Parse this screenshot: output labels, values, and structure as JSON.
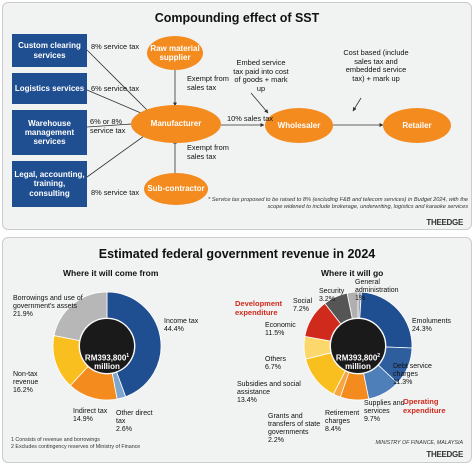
{
  "sst": {
    "title": "Compounding effect of SST",
    "boxes": {
      "custom": "Custom clearing services",
      "logistics": "Logistics services",
      "warehouse": "Warehouse management services",
      "legal": "Legal, accounting, training, consulting"
    },
    "ovals": {
      "raw": "Raw material supplier",
      "manufacturer": "Manufacturer",
      "subcontractor": "Sub-contractor",
      "wholesaler": "Wholesaler",
      "retailer": "Retailer"
    },
    "labels": {
      "custom_tax": "8% service tax",
      "logistics_tax": "6% service tax",
      "warehouse_tax": "6% or 8% service tax",
      "legal_tax": "8% service tax",
      "exempt_top": "Exempt from sales tax",
      "exempt_bottom": "Exempt from sales tax",
      "sales_tax": "10% sales tax",
      "embed": "Embed service tax paid into cost of goods + mark up",
      "cost_based": "Cost based (include sales tax and embedded service tax) + mark up"
    },
    "note": "* Service tax proposed to be raised to 8% (excluding F&B and telecom services) in Budget 2024, with the scope widened to include brokerage, underwriting, logistics and karaoke services",
    "logo": "THEEDGE"
  },
  "revenue": {
    "title": "Estimated federal government revenue in 2024",
    "left_sub": "Where it will come from",
    "right_sub": "Where it will go",
    "center_left": "RM393,800",
    "center_left_sup": "1",
    "center_right": "RM393,800",
    "center_right_sup": "2",
    "center_unit": "million",
    "dev_label": "Development expenditure",
    "op_label": "Operating expenditure",
    "footnotes": [
      "1 Consists of revenue and borrowings",
      "2 Excludes contingency reserves of Ministry of Finance"
    ],
    "source": "MINISTRY OF FINANCE, MALAYSIA",
    "logo": "THEEDGE"
  },
  "chart_data": [
    {
      "type": "pie",
      "title": "Where it will come from",
      "categories": [
        "Income tax",
        "Other direct tax",
        "Indirect tax",
        "Non-tax revenue",
        "Borrowings and use of government's assets"
      ],
      "values": [
        44.4,
        2.6,
        14.9,
        16.2,
        21.9
      ],
      "colors": [
        "#1f4e91",
        "#7fa6cf",
        "#f48b1f",
        "#f9bf1e",
        "#b7b7b7"
      ]
    },
    {
      "type": "pie",
      "title": "Where it will go",
      "categories": [
        "General administration",
        "Emoluments",
        "Debt service charges",
        "Supplies and services",
        "Retirement charges",
        "Grants and transfers of state governments",
        "Subsidies and social assistance",
        "Others",
        "Economic",
        "Social",
        "Security"
      ],
      "values": [
        1.0,
        24.3,
        11.3,
        9.7,
        8.4,
        2.2,
        13.4,
        6.7,
        11.5,
        7.2,
        3.2
      ],
      "colors": [
        "#9aa0a6",
        "#1f4e91",
        "#2f5e9f",
        "#4f7fb9",
        "#f48b1f",
        "#f7a541",
        "#f9bf1e",
        "#fcd76b",
        "#d02a1d",
        "#555555",
        "#b0b0b0"
      ]
    }
  ],
  "slice_labels_left": [
    {
      "name": "Income tax",
      "value": "44.4%"
    },
    {
      "name": "Other direct tax",
      "value": "2.6%"
    },
    {
      "name": "Indirect tax",
      "value": "14.9%"
    },
    {
      "name": "Non-tax revenue",
      "value": "16.2%"
    },
    {
      "name": "Borrowings and use of government's assets",
      "value": "21.9%"
    }
  ],
  "slice_labels_right": [
    {
      "name": "General administration",
      "value": "1%"
    },
    {
      "name": "Emoluments",
      "value": "24.3%"
    },
    {
      "name": "Debt service charges",
      "value": "11.3%"
    },
    {
      "name": "Supplies and services",
      "value": "9.7%"
    },
    {
      "name": "Retirement charges",
      "value": "8.4%"
    },
    {
      "name": "Grants and transfers of state governments",
      "value": "2.2%"
    },
    {
      "name": "Subsidies and social assistance",
      "value": "13.4%"
    },
    {
      "name": "Others",
      "value": "6.7%"
    },
    {
      "name": "Economic",
      "value": "11.5%"
    },
    {
      "name": "Social",
      "value": "7.2%"
    },
    {
      "name": "Security",
      "value": "3.2%"
    }
  ]
}
